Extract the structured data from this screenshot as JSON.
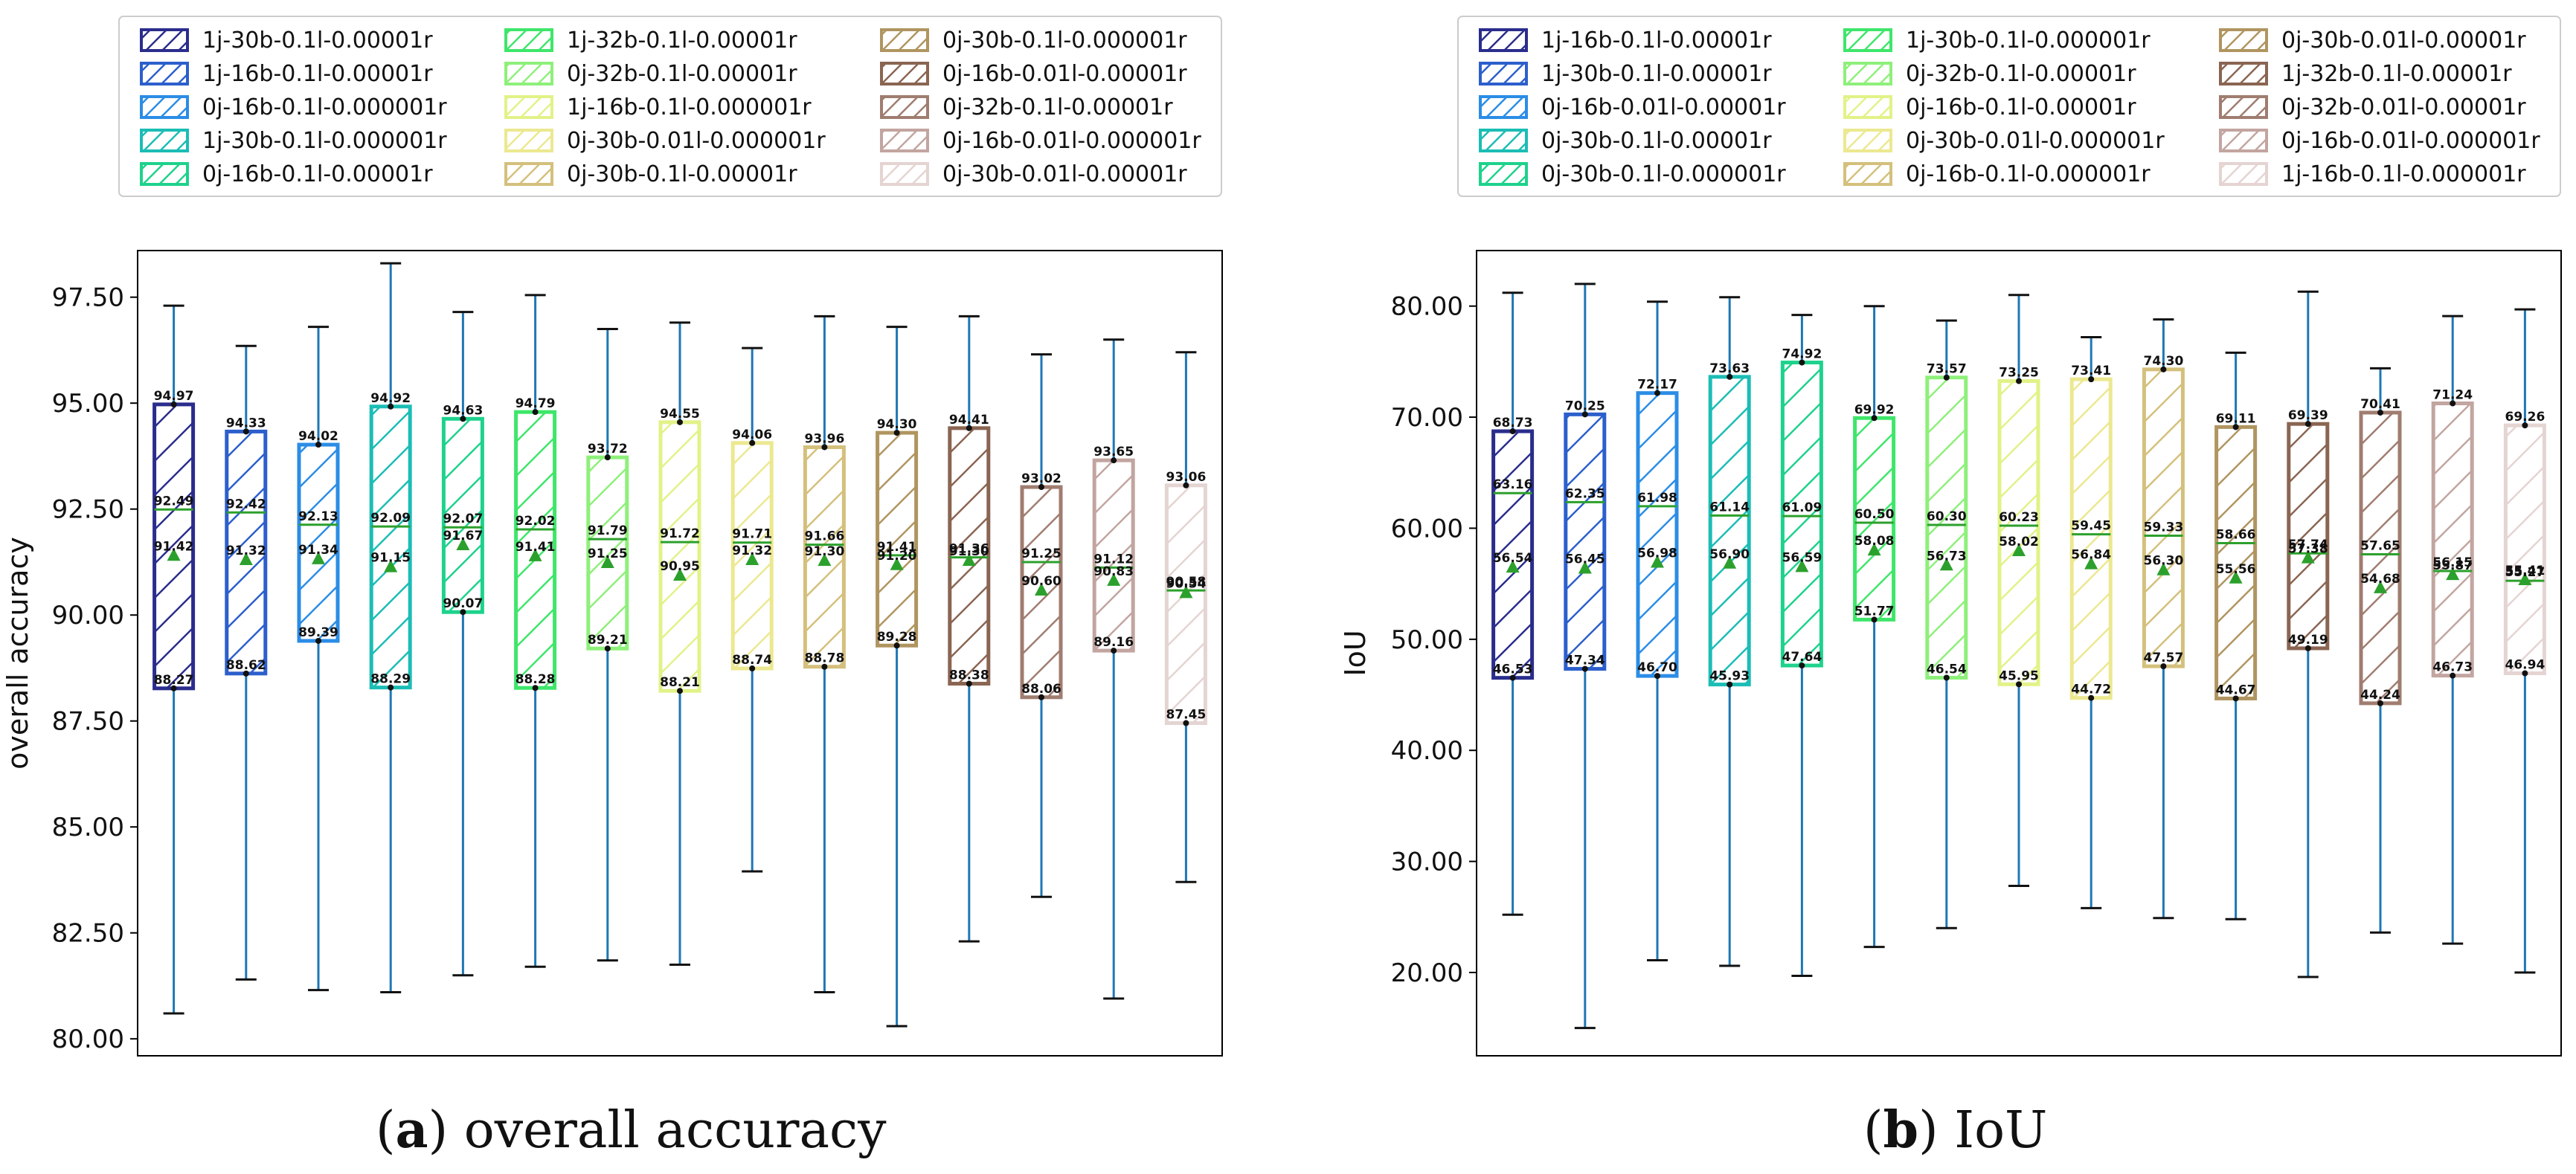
{
  "figure": {
    "caption_a": {
      "letter": "a",
      "text": "overall accuracy"
    },
    "caption_b": {
      "letter": "b",
      "text": "IoU"
    }
  },
  "chart_data": [
    {
      "type": "box",
      "title": "",
      "xlabel": "",
      "ylabel": "overall accuracy",
      "ylim": [
        79.6,
        98.6
      ],
      "yticks": [
        "80.00",
        "82.50",
        "85.00",
        "87.50",
        "90.00",
        "92.50",
        "95.00",
        "97.50"
      ],
      "legend": {
        "placement": "top",
        "columns": 3
      },
      "series": [
        {
          "name": "1j-30b-0.1l-0.00001r",
          "color": "#2a2d8c",
          "q1": 88.27,
          "median": 92.49,
          "q3": 94.97,
          "mean": 91.42,
          "whislo": 80.6,
          "whishi": 97.3,
          "labels": [
            "94.97",
            "92.49",
            "91.42",
            "88.27"
          ]
        },
        {
          "name": "1j-16b-0.1l-0.00001r",
          "color": "#2c5fcc",
          "q1": 88.62,
          "median": 92.42,
          "q3": 94.33,
          "mean": 91.32,
          "whislo": 81.4,
          "whishi": 96.35,
          "labels": [
            "94.33",
            "92.42",
            "91.32",
            "88.62"
          ]
        },
        {
          "name": "0j-16b-0.1l-0.000001r",
          "color": "#2b8de6",
          "q1": 89.39,
          "median": 92.13,
          "q3": 94.02,
          "mean": 91.34,
          "whislo": 81.15,
          "whishi": 96.8,
          "labels": [
            "94.02",
            "92.13",
            "91.34",
            "89.39"
          ]
        },
        {
          "name": "1j-30b-0.1l-0.000001r",
          "color": "#1bbdb5",
          "q1": 88.29,
          "median": 92.09,
          "q3": 94.92,
          "mean": 91.15,
          "whislo": 81.1,
          "whishi": 98.3,
          "labels": [
            "94.92",
            "92.09",
            "91.15",
            "88.29"
          ]
        },
        {
          "name": "0j-16b-0.1l-0.00001r",
          "color": "#1ed28c",
          "q1": 90.07,
          "median": 92.07,
          "q3": 94.63,
          "mean": 91.67,
          "whislo": 81.5,
          "whishi": 97.15,
          "labels": [
            "94.63",
            "92.07",
            "91.67",
            "90.07"
          ]
        },
        {
          "name": "1j-32b-0.1l-0.00001r",
          "color": "#3ee66a",
          "q1": 88.28,
          "median": 92.02,
          "q3": 94.79,
          "mean": 91.41,
          "whislo": 81.7,
          "whishi": 97.55,
          "labels": [
            "94.79",
            "92.02",
            "91.41",
            "88.28"
          ]
        },
        {
          "name": "0j-32b-0.1l-0.00001r",
          "color": "#8ef07a",
          "q1": 89.21,
          "median": 91.79,
          "q3": 93.72,
          "mean": 91.25,
          "whislo": 81.85,
          "whishi": 96.75,
          "labels": [
            "93.72",
            "91.79",
            "91.25",
            "89.21"
          ]
        },
        {
          "name": "1j-16b-0.1l-0.000001r",
          "color": "#e2f288",
          "q1": 88.21,
          "median": 91.72,
          "q3": 94.55,
          "mean": 90.95,
          "whislo": 81.75,
          "whishi": 96.9,
          "labels": [
            "94.55",
            "91.72",
            "90.95",
            "88.21"
          ]
        },
        {
          "name": "0j-30b-0.01l-0.000001r",
          "color": "#ece890",
          "q1": 88.74,
          "median": 91.71,
          "q3": 94.06,
          "mean": 91.32,
          "whislo": 83.95,
          "whishi": 96.3,
          "labels": [
            "94.06",
            "91.71",
            "91.32",
            "88.74"
          ]
        },
        {
          "name": "0j-30b-0.1l-0.00001r",
          "color": "#d4c07c",
          "q1": 88.78,
          "median": 91.66,
          "q3": 93.96,
          "mean": 91.3,
          "whislo": 81.1,
          "whishi": 97.05,
          "labels": [
            "93.96",
            "91.66",
            "91.30",
            "88.78"
          ]
        },
        {
          "name": "0j-30b-0.1l-0.000001r",
          "color": "#b09560",
          "q1": 89.28,
          "median": 91.41,
          "q3": 94.3,
          "mean": 91.2,
          "whislo": 80.3,
          "whishi": 96.8,
          "labels": [
            "94.30",
            "91.41",
            "91.20",
            "89.28"
          ]
        },
        {
          "name": "0j-16b-0.01l-0.00001r",
          "color": "#8a6552",
          "q1": 88.38,
          "median": 91.36,
          "q3": 94.41,
          "mean": 91.3,
          "whislo": 82.3,
          "whishi": 97.05,
          "labels": [
            "94.41",
            "91.36",
            "91.30",
            "88.38"
          ]
        },
        {
          "name": "0j-32b-0.1l-0.00001r",
          "color": "#a07d70",
          "q1": 88.06,
          "median": 91.25,
          "q3": 93.02,
          "mean": 90.6,
          "whislo": 83.35,
          "whishi": 96.15,
          "labels": [
            "93.02",
            "91.25",
            "90.60",
            "88.06"
          ]
        },
        {
          "name": "0j-16b-0.01l-0.000001r",
          "color": "#c2a5a0",
          "q1": 89.16,
          "median": 91.12,
          "q3": 93.65,
          "mean": 90.83,
          "whislo": 80.95,
          "whishi": 96.5,
          "labels": [
            "93.65",
            "91.12",
            "90.83",
            "89.16"
          ]
        },
        {
          "name": "0j-30b-0.01l-0.00001r",
          "color": "#e4d4d2",
          "q1": 87.45,
          "median": 90.58,
          "q3": 93.06,
          "mean": 90.54,
          "whislo": 83.7,
          "whishi": 96.2,
          "labels": [
            "93.06",
            "90.58",
            "90.54",
            "87.45"
          ]
        }
      ]
    },
    {
      "type": "box",
      "title": "",
      "xlabel": "",
      "ylabel": "IoU",
      "ylim": [
        12.5,
        85.0
      ],
      "yticks": [
        "20.00",
        "30.00",
        "40.00",
        "50.00",
        "60.00",
        "70.00",
        "80.00"
      ],
      "legend": {
        "placement": "top",
        "columns": 3
      },
      "series": [
        {
          "name": "1j-16b-0.1l-0.00001r",
          "color": "#2a2d8c",
          "q1": 46.53,
          "median": 63.16,
          "q3": 68.73,
          "mean": 56.54,
          "whislo": 25.2,
          "whishi": 81.2,
          "labels": [
            "68.73",
            "63.16",
            "56.54",
            "46.53"
          ]
        },
        {
          "name": "1j-30b-0.1l-0.00001r",
          "color": "#2c5fcc",
          "q1": 47.34,
          "median": 62.35,
          "q3": 70.25,
          "mean": 56.45,
          "whislo": 15.0,
          "whishi": 82.0,
          "labels": [
            "70.25",
            "62.35",
            "56.45",
            "47.34"
          ]
        },
        {
          "name": "0j-16b-0.01l-0.00001r",
          "color": "#2b8de6",
          "q1": 46.7,
          "median": 61.98,
          "q3": 72.17,
          "mean": 56.98,
          "whislo": 21.1,
          "whishi": 80.4,
          "labels": [
            "72.17",
            "61.98",
            "56.98",
            "46.70"
          ]
        },
        {
          "name": "0j-30b-0.1l-0.00001r",
          "color": "#1bbdb5",
          "q1": 45.93,
          "median": 61.14,
          "q3": 73.63,
          "mean": 56.9,
          "whislo": 20.6,
          "whishi": 80.8,
          "labels": [
            "73.63",
            "61.14",
            "56.90",
            "45.93"
          ]
        },
        {
          "name": "0j-30b-0.1l-0.000001r",
          "color": "#1ed28c",
          "q1": 47.64,
          "median": 61.09,
          "q3": 74.92,
          "mean": 56.59,
          "whislo": 19.7,
          "whishi": 79.2,
          "labels": [
            "74.92",
            "61.09",
            "56.59",
            "47.64"
          ]
        },
        {
          "name": "1j-30b-0.1l-0.000001r",
          "color": "#3ee66a",
          "q1": 51.77,
          "median": 60.5,
          "q3": 69.92,
          "mean": 58.08,
          "whislo": 22.3,
          "whishi": 80.0,
          "labels": [
            "69.92",
            "60.50",
            "58.08",
            "51.77"
          ]
        },
        {
          "name": "0j-32b-0.1l-0.00001r",
          "color": "#8ef07a",
          "q1": 46.54,
          "median": 60.3,
          "q3": 73.57,
          "mean": 56.73,
          "whislo": 24.0,
          "whishi": 78.7,
          "labels": [
            "73.57",
            "60.30",
            "56.73",
            "46.54"
          ]
        },
        {
          "name": "0j-16b-0.1l-0.00001r",
          "color": "#e2f288",
          "q1": 45.95,
          "median": 60.23,
          "q3": 73.25,
          "mean": 58.02,
          "whislo": 27.8,
          "whishi": 81.0,
          "labels": [
            "73.25",
            "60.23",
            "58.02",
            "45.95"
          ]
        },
        {
          "name": "0j-30b-0.01l-0.000001r",
          "color": "#ece890",
          "q1": 44.72,
          "median": 59.45,
          "q3": 73.41,
          "mean": 56.84,
          "whislo": 25.8,
          "whishi": 77.2,
          "labels": [
            "73.41",
            "59.45",
            "56.84",
            "44.72"
          ]
        },
        {
          "name": "0j-16b-0.1l-0.000001r",
          "color": "#d4c07c",
          "q1": 47.57,
          "median": 59.33,
          "q3": 74.3,
          "mean": 56.3,
          "whislo": 24.9,
          "whishi": 78.8,
          "labels": [
            "74.30",
            "59.33",
            "56.30",
            "47.57"
          ]
        },
        {
          "name": "0j-30b-0.01l-0.00001r",
          "color": "#b09560",
          "q1": 44.67,
          "median": 58.66,
          "q3": 69.11,
          "mean": 55.56,
          "whislo": 24.8,
          "whishi": 75.8,
          "labels": [
            "69.11",
            "58.66",
            "55.56",
            "44.67"
          ]
        },
        {
          "name": "1j-32b-0.1l-0.00001r",
          "color": "#8a6552",
          "q1": 49.19,
          "median": 57.74,
          "q3": 69.39,
          "mean": 57.38,
          "whislo": 19.6,
          "whishi": 81.3,
          "labels": [
            "69.39",
            "57.74",
            "57.38",
            "49.19"
          ]
        },
        {
          "name": "0j-32b-0.01l-0.00001r",
          "color": "#a07d70",
          "q1": 44.24,
          "median": 57.65,
          "q3": 70.41,
          "mean": 54.68,
          "whislo": 23.6,
          "whishi": 74.4,
          "labels": [
            "70.41",
            "57.65",
            "54.68",
            "44.24"
          ]
        },
        {
          "name": "0j-16b-0.01l-0.000001r",
          "color": "#c2a5a0",
          "q1": 46.73,
          "median": 56.15,
          "q3": 71.24,
          "mean": 55.87,
          "whislo": 22.6,
          "whishi": 79.1,
          "labels": [
            "71.24",
            "56.15",
            "55.87",
            "46.73"
          ]
        },
        {
          "name": "1j-16b-0.1l-0.000001r",
          "color": "#e4d4d2",
          "q1": 46.94,
          "median": 55.27,
          "q3": 69.26,
          "mean": 55.41,
          "whislo": 20.0,
          "whishi": 79.7,
          "labels": [
            "69.26",
            "55.27",
            "55.41",
            "46.94"
          ]
        }
      ]
    }
  ]
}
